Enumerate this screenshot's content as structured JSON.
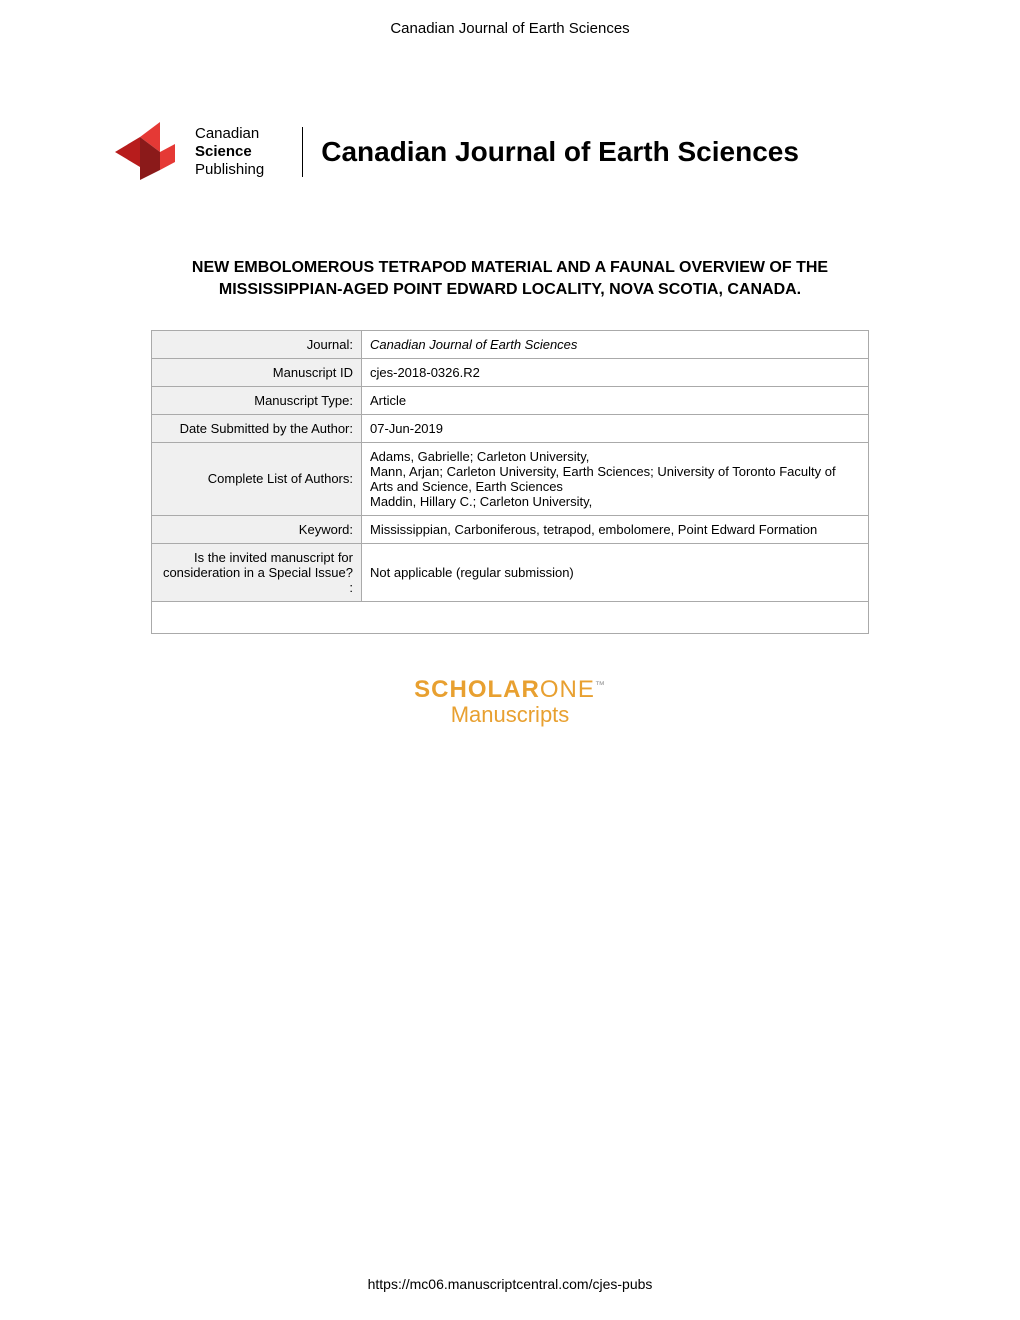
{
  "header": {
    "journal_short": "Canadian Journal of Earth Sciences"
  },
  "logo": {
    "colors": {
      "red_light": "#e53935",
      "red_dark": "#b71c1c"
    },
    "text_line1": "Canadian",
    "text_line2": "Science",
    "text_line3": "Publishing"
  },
  "journal_title_large": "Canadian Journal of Earth Sciences",
  "article_title": "NEW EMBOLOMEROUS TETRAPOD MATERIAL AND A FAUNAL OVERVIEW OF THE MISSISSIPPIAN-AGED POINT EDWARD LOCALITY, NOVA SCOTIA, CANADA.",
  "metadata": {
    "rows": [
      {
        "label": "Journal:",
        "value": "Canadian Journal of Earth Sciences",
        "italic": true
      },
      {
        "label": "Manuscript ID",
        "value": "cjes-2018-0326.R2"
      },
      {
        "label": "Manuscript Type:",
        "value": "Article"
      },
      {
        "label": "Date Submitted by the Author:",
        "value": "07-Jun-2019"
      },
      {
        "label": "Complete List of Authors:",
        "value": "Adams, Gabrielle; Carleton University,\nMann, Arjan; Carleton University, Earth Sciences; University of Toronto Faculty of Arts and Science,  Earth Sciences\nMaddin, Hillary C.; Carleton University,"
      },
      {
        "label": "Keyword:",
        "value": "Mississippian, Carboniferous, tetrapod, embolomere, Point Edward Formation"
      },
      {
        "label": "Is the invited manuscript for consideration in a Special Issue? :",
        "value": "Not applicable (regular submission)"
      }
    ]
  },
  "scholarone": {
    "brand_bold": "SCHOLAR",
    "brand_light": "ONE",
    "tm": "™",
    "subtitle": "Manuscripts"
  },
  "footer": {
    "url": "https://mc06.manuscriptcentral.com/cjes-pubs"
  }
}
